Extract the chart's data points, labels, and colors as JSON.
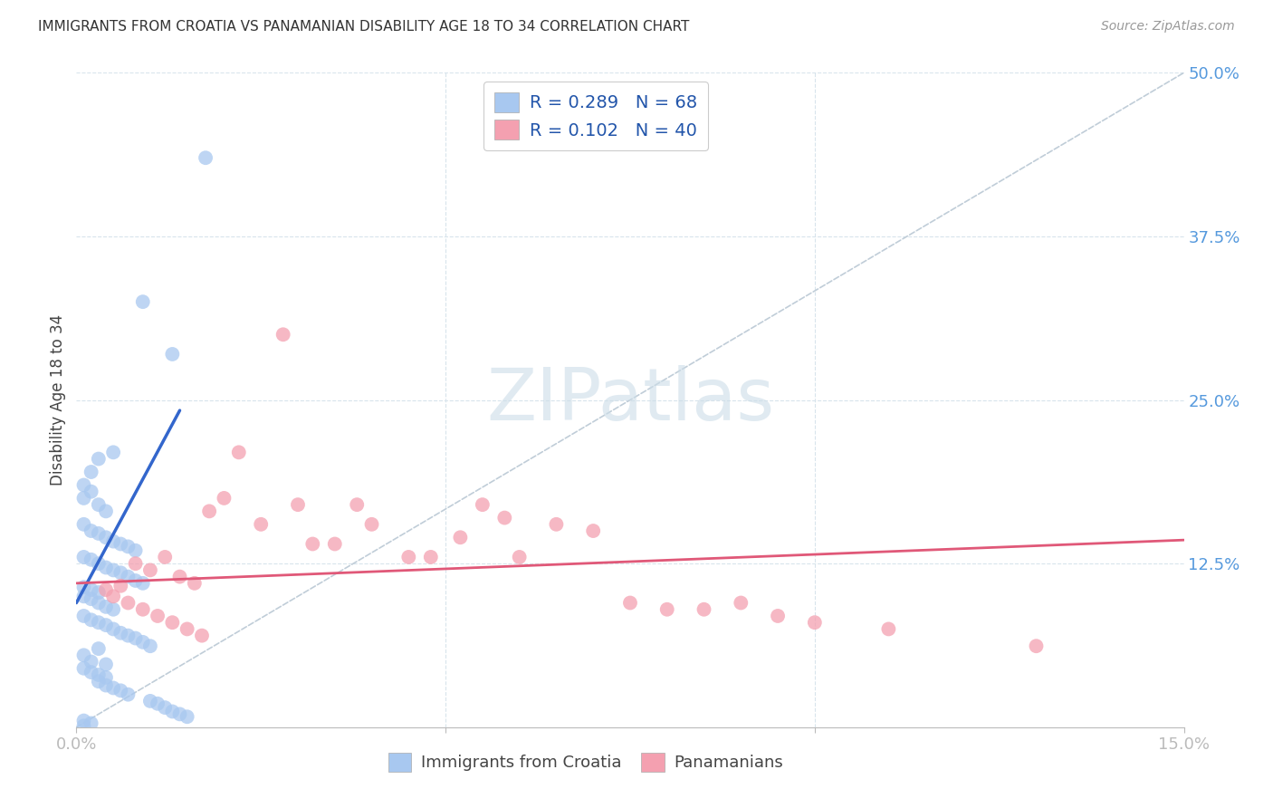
{
  "title": "IMMIGRANTS FROM CROATIA VS PANAMANIAN DISABILITY AGE 18 TO 34 CORRELATION CHART",
  "source": "Source: ZipAtlas.com",
  "ylabel": "Disability Age 18 to 34",
  "xlim": [
    0.0,
    0.15
  ],
  "ylim": [
    0.0,
    0.5
  ],
  "blue_R": 0.289,
  "blue_N": 68,
  "pink_R": 0.102,
  "pink_N": 40,
  "blue_color": "#a8c8f0",
  "pink_color": "#f4a0b0",
  "blue_line_color": "#3366cc",
  "pink_line_color": "#e05878",
  "dashed_line_color": "#c0cdd8",
  "grid_color": "#d8e4ec",
  "watermark_color": "#ccdde8",
  "blue_x": [
    0.0175,
    0.009,
    0.013,
    0.003,
    0.005,
    0.002,
    0.001,
    0.001,
    0.002,
    0.003,
    0.004,
    0.001,
    0.002,
    0.003,
    0.004,
    0.005,
    0.006,
    0.007,
    0.008,
    0.001,
    0.002,
    0.003,
    0.004,
    0.005,
    0.006,
    0.007,
    0.008,
    0.009,
    0.001,
    0.002,
    0.003,
    0.001,
    0.002,
    0.003,
    0.004,
    0.005,
    0.001,
    0.002,
    0.003,
    0.004,
    0.005,
    0.006,
    0.007,
    0.008,
    0.009,
    0.01,
    0.001,
    0.002,
    0.001,
    0.002,
    0.003,
    0.004,
    0.003,
    0.004,
    0.005,
    0.006,
    0.007,
    0.01,
    0.011,
    0.012,
    0.013,
    0.014,
    0.015,
    0.001,
    0.002,
    0.001,
    0.003,
    0.004
  ],
  "blue_y": [
    0.435,
    0.325,
    0.285,
    0.205,
    0.21,
    0.195,
    0.175,
    0.185,
    0.18,
    0.17,
    0.165,
    0.155,
    0.15,
    0.148,
    0.145,
    0.142,
    0.14,
    0.138,
    0.135,
    0.13,
    0.128,
    0.125,
    0.122,
    0.12,
    0.118,
    0.115,
    0.112,
    0.11,
    0.107,
    0.105,
    0.103,
    0.1,
    0.098,
    0.095,
    0.092,
    0.09,
    0.085,
    0.082,
    0.08,
    0.078,
    0.075,
    0.072,
    0.07,
    0.068,
    0.065,
    0.062,
    0.055,
    0.05,
    0.045,
    0.042,
    0.04,
    0.038,
    0.035,
    0.032,
    0.03,
    0.028,
    0.025,
    0.02,
    0.018,
    0.015,
    0.012,
    0.01,
    0.008,
    0.005,
    0.003,
    0.001,
    0.06,
    0.048
  ],
  "pink_x": [
    0.028,
    0.03,
    0.02,
    0.022,
    0.018,
    0.038,
    0.04,
    0.025,
    0.032,
    0.012,
    0.008,
    0.01,
    0.014,
    0.016,
    0.006,
    0.055,
    0.058,
    0.048,
    0.052,
    0.035,
    0.065,
    0.07,
    0.075,
    0.08,
    0.045,
    0.095,
    0.1,
    0.11,
    0.085,
    0.09,
    0.004,
    0.005,
    0.007,
    0.009,
    0.011,
    0.013,
    0.015,
    0.017,
    0.13,
    0.06
  ],
  "pink_y": [
    0.3,
    0.17,
    0.175,
    0.21,
    0.165,
    0.17,
    0.155,
    0.155,
    0.14,
    0.13,
    0.125,
    0.12,
    0.115,
    0.11,
    0.108,
    0.17,
    0.16,
    0.13,
    0.145,
    0.14,
    0.155,
    0.15,
    0.095,
    0.09,
    0.13,
    0.085,
    0.08,
    0.075,
    0.09,
    0.095,
    0.105,
    0.1,
    0.095,
    0.09,
    0.085,
    0.08,
    0.075,
    0.07,
    0.062,
    0.13
  ],
  "blue_line_x": [
    0.0,
    0.014
  ],
  "blue_line_y_intercept": 0.095,
  "blue_line_slope": 10.5,
  "pink_line_x": [
    0.0,
    0.15
  ],
  "pink_line_y_intercept": 0.11,
  "pink_line_slope": 0.22
}
